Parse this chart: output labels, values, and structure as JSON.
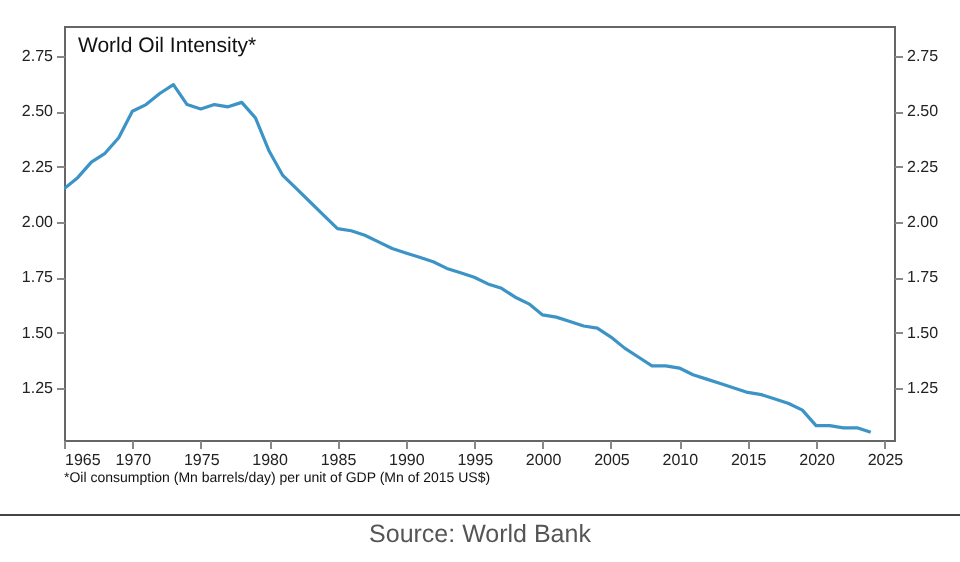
{
  "chart_data": {
    "type": "line",
    "title": "World Oil Intensity*",
    "annotations": [
      "*Oil consumption (Mn barrels/day) per unit of GDP (Mn of 2015 US$)",
      "Source: World Bank"
    ],
    "x": [
      1965,
      1966,
      1967,
      1968,
      1969,
      1970,
      1971,
      1972,
      1973,
      1974,
      1975,
      1976,
      1977,
      1978,
      1979,
      1980,
      1981,
      1982,
      1983,
      1984,
      1985,
      1986,
      1987,
      1988,
      1989,
      1990,
      1991,
      1992,
      1993,
      1994,
      1995,
      1996,
      1997,
      1998,
      1999,
      2000,
      2001,
      2002,
      2003,
      2004,
      2005,
      2006,
      2007,
      2008,
      2009,
      2010,
      2011,
      2012,
      2013,
      2014,
      2015,
      2016,
      2017,
      2018,
      2019,
      2020,
      2021,
      2022,
      2023,
      2024
    ],
    "series": [
      {
        "color": "#3b93c6",
        "values": [
          2.15,
          2.2,
          2.27,
          2.31,
          2.38,
          2.5,
          2.53,
          2.58,
          2.62,
          2.53,
          2.51,
          2.53,
          2.52,
          2.54,
          2.47,
          2.32,
          2.21,
          2.15,
          2.09,
          2.03,
          1.97,
          1.96,
          1.94,
          1.91,
          1.88,
          1.86,
          1.84,
          1.82,
          1.79,
          1.77,
          1.75,
          1.72,
          1.7,
          1.66,
          1.63,
          1.58,
          1.57,
          1.55,
          1.53,
          1.52,
          1.48,
          1.43,
          1.39,
          1.35,
          1.35,
          1.34,
          1.31,
          1.29,
          1.27,
          1.25,
          1.23,
          1.22,
          1.2,
          1.18,
          1.15,
          1.08,
          1.08,
          1.07,
          1.07,
          1.05
        ]
      }
    ],
    "xlim": [
      1965,
      2025.7
    ],
    "xticks": [
      1965,
      1970,
      1975,
      1980,
      1985,
      1990,
      1995,
      2000,
      2005,
      2010,
      2015,
      2020,
      2025
    ],
    "ylim": [
      1.015,
      2.885
    ],
    "yticks": [
      1.25,
      {
        "value": 1.5,
        "label": "1.50"
      },
      1.75,
      {
        "value": 2,
        "label": "2.00"
      },
      2.25,
      {
        "value": 2.5,
        "label": "2.50"
      },
      2.75
    ],
    "y2lim": [
      1.015,
      2.885
    ],
    "y2ticks": [
      1.25,
      {
        "value": 1.5,
        "label": "1.50"
      },
      1.75,
      {
        "value": 2,
        "label": "2.00"
      },
      2.25,
      {
        "value": 2.5,
        "label": "2.50"
      },
      2.75
    ],
    "grid": false
  }
}
